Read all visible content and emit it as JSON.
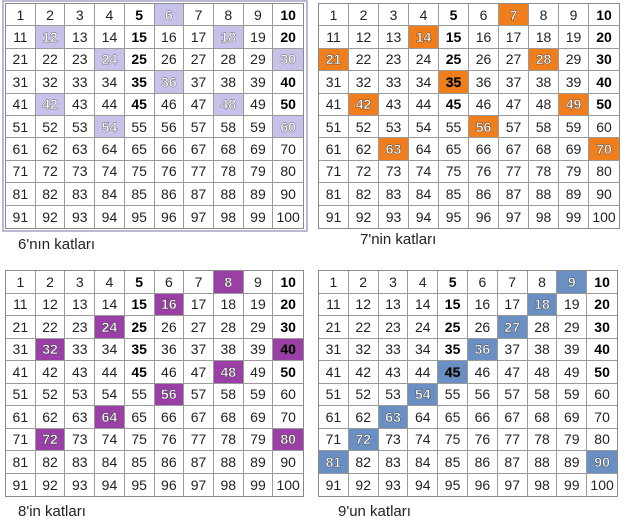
{
  "panels": [
    {
      "id": "p6",
      "caption": "6'nın katları",
      "multiple": 6,
      "color": "#c7c2ea",
      "marked": [
        6,
        12,
        18,
        24,
        30,
        36,
        42,
        48,
        54,
        60
      ]
    },
    {
      "id": "p7",
      "caption": "7'nin katları",
      "multiple": 7,
      "color": "#f07e1c",
      "marked": [
        7,
        14,
        21,
        28,
        35,
        42,
        49,
        56,
        63,
        70
      ]
    },
    {
      "id": "p8",
      "caption": "8'in katları",
      "multiple": 8,
      "color": "#9a3fa6",
      "marked": [
        8,
        16,
        24,
        32,
        40,
        48,
        56,
        64,
        72,
        80
      ]
    },
    {
      "id": "p9",
      "caption": "9'un katları",
      "multiple": 9,
      "color": "#6a8fc2",
      "marked": [
        9,
        18,
        27,
        36,
        45,
        54,
        63,
        72,
        81,
        90
      ]
    }
  ],
  "bold_numbers": [
    5,
    10,
    15,
    20,
    25,
    30,
    35,
    40,
    45,
    50
  ]
}
